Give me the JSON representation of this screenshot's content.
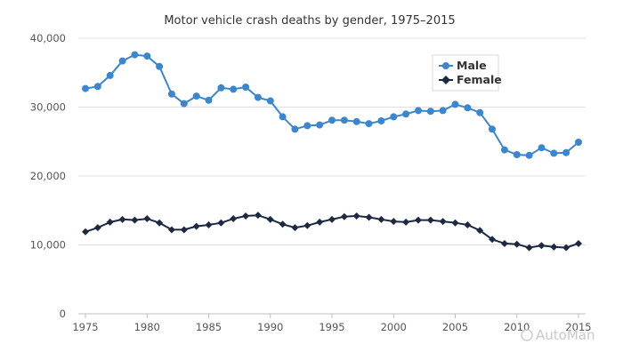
{
  "chart_data": {
    "type": "line",
    "title": "Motor vehicle crash deaths by gender, 1975–2015",
    "x": [
      1975,
      1976,
      1977,
      1978,
      1979,
      1980,
      1981,
      1982,
      1983,
      1984,
      1985,
      1986,
      1987,
      1988,
      1989,
      1990,
      1991,
      1992,
      1993,
      1994,
      1995,
      1996,
      1997,
      1998,
      1999,
      2000,
      2001,
      2002,
      2003,
      2004,
      2005,
      2006,
      2007,
      2008,
      2009,
      2010,
      2011,
      2012,
      2013,
      2014,
      2015
    ],
    "series": [
      {
        "name": "Male",
        "color": "#3a87cf",
        "marker": "circle",
        "values": [
          32700,
          33000,
          34600,
          36700,
          37600,
          37400,
          35900,
          31900,
          30500,
          31600,
          31000,
          32800,
          32600,
          32900,
          31400,
          30900,
          28600,
          26800,
          27300,
          27400,
          28100,
          28100,
          27900,
          27600,
          28000,
          28600,
          29000,
          29500,
          29400,
          29500,
          30400,
          29900,
          29200,
          26800,
          23800,
          23100,
          23000,
          24100,
          23300,
          23400,
          24900
        ]
      },
      {
        "name": "Female",
        "color": "#1b2a40",
        "marker": "diamond",
        "values": [
          11900,
          12500,
          13300,
          13700,
          13600,
          13800,
          13200,
          12200,
          12200,
          12700,
          12900,
          13200,
          13800,
          14200,
          14300,
          13700,
          13000,
          12500,
          12800,
          13300,
          13700,
          14100,
          14200,
          14000,
          13700,
          13400,
          13300,
          13600,
          13600,
          13400,
          13200,
          12900,
          12100,
          10800,
          10200,
          10100,
          9600,
          9900,
          9700,
          9600,
          10200
        ]
      }
    ],
    "ylim": [
      0,
      40000
    ],
    "yticks": [
      "0",
      "10,000",
      "20,000",
      "30,000",
      "40,000"
    ],
    "xticks": [
      "1975",
      "1980",
      "1985",
      "1990",
      "1995",
      "2000",
      "2005",
      "2010",
      "2015"
    ],
    "xlabel": "",
    "ylabel": "",
    "grid": "horizontal",
    "legend": "top-right, inside plot"
  },
  "watermark": "AutoMan"
}
